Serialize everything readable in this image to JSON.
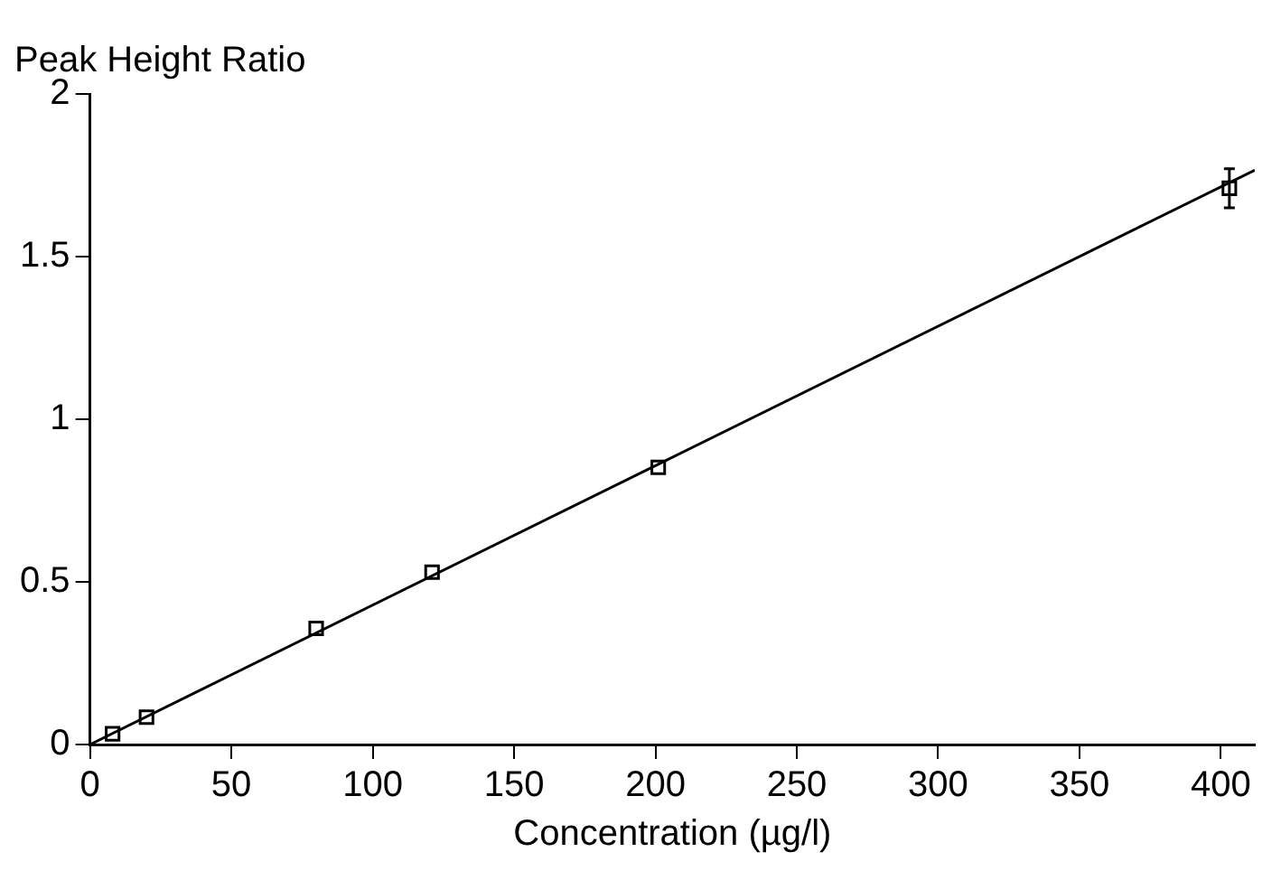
{
  "chart_data": {
    "type": "scatter",
    "ylabel": "Peak Height Ratio",
    "xlabel": "Concentration (µg/l)",
    "series": [
      {
        "color": "#000000",
        "marker": "square",
        "x": [
          8,
          20,
          80,
          121,
          201,
          403
        ],
        "values": [
          0.033,
          0.084,
          0.357,
          0.53,
          0.852,
          1.71
        ],
        "errors": [
          null,
          null,
          null,
          null,
          null,
          [
            1.65,
            1.77
          ]
        ]
      },
      {
        "type": "line",
        "color": "#000000",
        "marker": "none",
        "x": [
          0,
          412
        ],
        "values": [
          0,
          1.766
        ]
      }
    ],
    "xlim": [
      0,
      412
    ],
    "xticks": [
      0,
      50,
      100,
      150,
      200,
      250,
      300,
      350,
      400
    ],
    "ylim": [
      0,
      2
    ],
    "yticks": [
      0,
      0.5,
      1,
      1.5,
      2
    ],
    "grid": false,
    "legend": false
  }
}
